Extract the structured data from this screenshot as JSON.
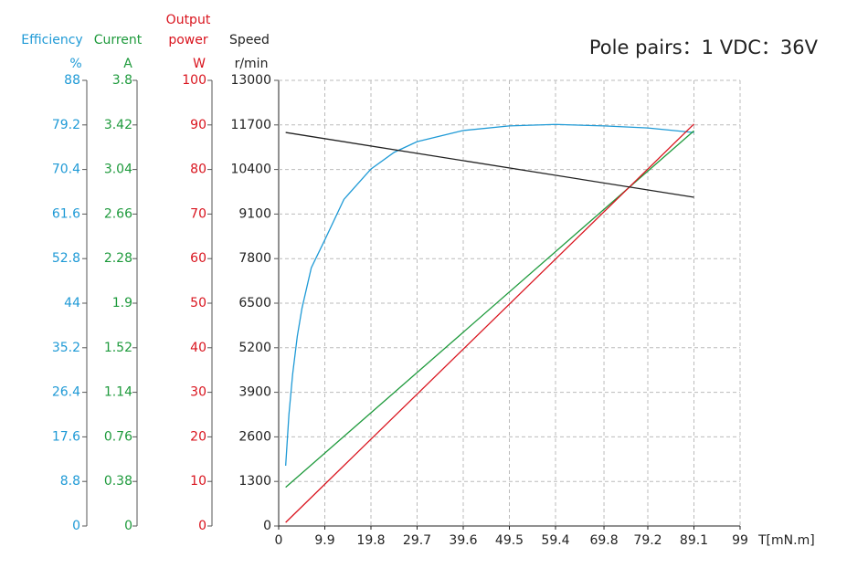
{
  "chart_data": {
    "type": "line",
    "title": "Pole pairs：1   VDC：36V",
    "xlabel": "T[mN.m]",
    "xlim": [
      0,
      99
    ],
    "xticks": [
      0,
      9.9,
      19.8,
      29.7,
      39.6,
      49.5,
      59.4,
      69.8,
      79.2,
      89.1,
      99
    ],
    "grid": true,
    "axes": [
      {
        "label": [
          "Efficiency"
        ],
        "unit": "%",
        "color": "#1f9ad6",
        "lim": [
          0,
          88
        ],
        "ticks": [
          0,
          8.8,
          17.6,
          26.4,
          35.2,
          44,
          52.8,
          61.6,
          70.4,
          79.2,
          88
        ]
      },
      {
        "label": [
          "Current"
        ],
        "unit": "A",
        "color": "#1e9a3c",
        "lim": [
          0,
          3.8
        ],
        "ticks": [
          0,
          0.38,
          0.76,
          1.14,
          1.52,
          1.9,
          2.28,
          2.66,
          3.04,
          3.42,
          3.8
        ]
      },
      {
        "label": [
          "Output",
          "power"
        ],
        "unit": "W",
        "color": "#d9141e",
        "lim": [
          0,
          100
        ],
        "ticks": [
          0,
          10,
          20,
          30,
          40,
          50,
          60,
          70,
          80,
          90,
          100
        ]
      },
      {
        "label": [
          "Speed"
        ],
        "unit": "r/min",
        "color": "#222222",
        "lim": [
          0,
          13000
        ],
        "ticks": [
          0,
          1300,
          2600,
          3900,
          5200,
          6500,
          7800,
          9100,
          10400,
          11700,
          13000
        ]
      }
    ],
    "series": [
      {
        "axis": 0,
        "color": "#1f9ad6",
        "x": [
          1.5,
          2.2,
          3,
          4,
          5,
          7,
          9.9,
          14,
          19.8,
          24.8,
          29.7,
          39.6,
          49.5,
          59.4,
          69.8,
          79.2,
          89.1
        ],
        "values": [
          11.9,
          22,
          30,
          37.5,
          43,
          51,
          56.5,
          64.5,
          70.5,
          73.8,
          75.9,
          78.1,
          79,
          79.3,
          79,
          78.6,
          77.7
        ]
      },
      {
        "axis": 1,
        "color": "#1e9a3c",
        "x": [
          1.5,
          89.1
        ],
        "values": [
          0.33,
          3.37
        ]
      },
      {
        "axis": 2,
        "color": "#d9141e",
        "x": [
          1.5,
          89.1
        ],
        "values": [
          0.8,
          90.2
        ]
      },
      {
        "axis": 3,
        "color": "#222222",
        "x": [
          1.5,
          89.1
        ],
        "values": [
          11480,
          9590
        ]
      }
    ]
  }
}
